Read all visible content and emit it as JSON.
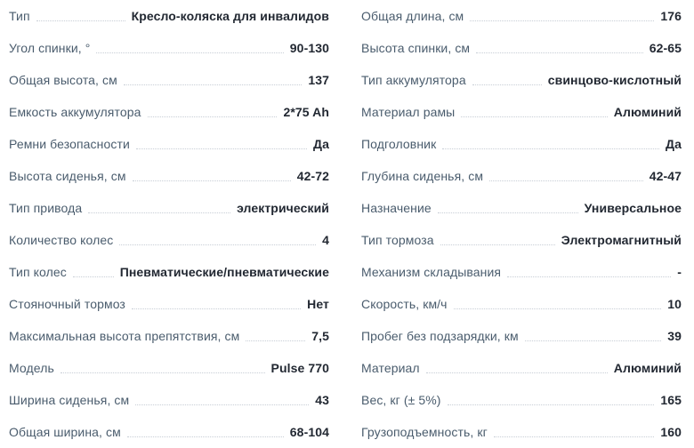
{
  "colors": {
    "background": "#ffffff",
    "label_text": "#4a5c6d",
    "value_text": "#222832",
    "leader_dots": "#c7ced5"
  },
  "specs": {
    "left": [
      {
        "label": "Тип",
        "value": "Кресло-коляска для инвалидов"
      },
      {
        "label": "Угол спинки, °",
        "value": "90-130"
      },
      {
        "label": "Общая высота, см",
        "value": "137"
      },
      {
        "label": "Емкость аккумулятора",
        "value": "2*75 Ah"
      },
      {
        "label": "Ремни безопасности",
        "value": "Да"
      },
      {
        "label": "Высота сиденья, см",
        "value": "42-72"
      },
      {
        "label": "Тип привода",
        "value": "электрический"
      },
      {
        "label": "Количество колес",
        "value": "4"
      },
      {
        "label": "Тип колес",
        "value": "Пневматические/пневматические"
      },
      {
        "label": "Стояночный тормоз",
        "value": "Нет"
      },
      {
        "label": "Максимальная высота препятствия, см",
        "value": "7,5"
      },
      {
        "label": "Модель",
        "value": "Pulse 770"
      },
      {
        "label": "Ширина сиденья, см",
        "value": "43"
      },
      {
        "label": "Общая ширина, см",
        "value": "68-104"
      }
    ],
    "right": [
      {
        "label": "Общая длина, см",
        "value": "176"
      },
      {
        "label": "Высота спинки, см",
        "value": "62-65"
      },
      {
        "label": "Тип аккумулятора",
        "value": "свинцово-кислотный"
      },
      {
        "label": "Материал рамы",
        "value": "Алюминий"
      },
      {
        "label": "Подголовник",
        "value": "Да"
      },
      {
        "label": "Глубина сиденья, см",
        "value": "42-47"
      },
      {
        "label": "Назначение",
        "value": "Универсальное"
      },
      {
        "label": "Тип тормоза",
        "value": "Электромагнитный"
      },
      {
        "label": "Механизм складывания",
        "value": "-"
      },
      {
        "label": "Скорость, км/ч",
        "value": "10"
      },
      {
        "label": "Пробег без подзарядки, км",
        "value": "39"
      },
      {
        "label": "Материал",
        "value": "Алюминий"
      },
      {
        "label": "Вес, кг (± 5%)",
        "value": "165"
      },
      {
        "label": "Грузоподъемность, кг",
        "value": "160"
      }
    ]
  }
}
